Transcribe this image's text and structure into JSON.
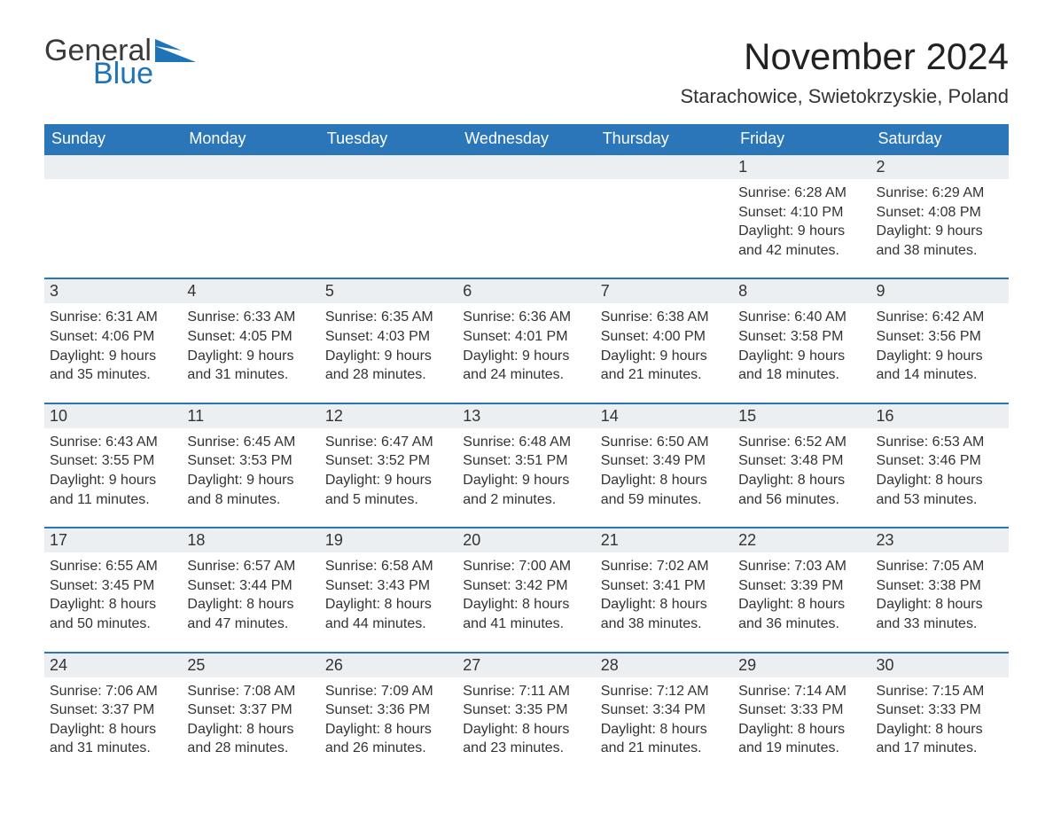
{
  "brand": {
    "general": "General",
    "blue": "Blue"
  },
  "title": "November 2024",
  "location": "Starachowice, Swietokrzyskie, Poland",
  "colors": {
    "header_bg": "#2a76b9",
    "header_text": "#ffffff",
    "week_border": "#2a76b9",
    "daynum_bg": "#eceff1",
    "text": "#333333",
    "page_bg": "#ffffff",
    "logo_general": "#3a3a3a",
    "logo_blue": "#1f74b8"
  },
  "day_names": [
    "Sunday",
    "Monday",
    "Tuesday",
    "Wednesday",
    "Thursday",
    "Friday",
    "Saturday"
  ],
  "weeks": [
    [
      null,
      null,
      null,
      null,
      null,
      {
        "n": "1",
        "sunrise": "Sunrise: 6:28 AM",
        "sunset": "Sunset: 4:10 PM",
        "daylight": "Daylight: 9 hours and 42 minutes."
      },
      {
        "n": "2",
        "sunrise": "Sunrise: 6:29 AM",
        "sunset": "Sunset: 4:08 PM",
        "daylight": "Daylight: 9 hours and 38 minutes."
      }
    ],
    [
      {
        "n": "3",
        "sunrise": "Sunrise: 6:31 AM",
        "sunset": "Sunset: 4:06 PM",
        "daylight": "Daylight: 9 hours and 35 minutes."
      },
      {
        "n": "4",
        "sunrise": "Sunrise: 6:33 AM",
        "sunset": "Sunset: 4:05 PM",
        "daylight": "Daylight: 9 hours and 31 minutes."
      },
      {
        "n": "5",
        "sunrise": "Sunrise: 6:35 AM",
        "sunset": "Sunset: 4:03 PM",
        "daylight": "Daylight: 9 hours and 28 minutes."
      },
      {
        "n": "6",
        "sunrise": "Sunrise: 6:36 AM",
        "sunset": "Sunset: 4:01 PM",
        "daylight": "Daylight: 9 hours and 24 minutes."
      },
      {
        "n": "7",
        "sunrise": "Sunrise: 6:38 AM",
        "sunset": "Sunset: 4:00 PM",
        "daylight": "Daylight: 9 hours and 21 minutes."
      },
      {
        "n": "8",
        "sunrise": "Sunrise: 6:40 AM",
        "sunset": "Sunset: 3:58 PM",
        "daylight": "Daylight: 9 hours and 18 minutes."
      },
      {
        "n": "9",
        "sunrise": "Sunrise: 6:42 AM",
        "sunset": "Sunset: 3:56 PM",
        "daylight": "Daylight: 9 hours and 14 minutes."
      }
    ],
    [
      {
        "n": "10",
        "sunrise": "Sunrise: 6:43 AM",
        "sunset": "Sunset: 3:55 PM",
        "daylight": "Daylight: 9 hours and 11 minutes."
      },
      {
        "n": "11",
        "sunrise": "Sunrise: 6:45 AM",
        "sunset": "Sunset: 3:53 PM",
        "daylight": "Daylight: 9 hours and 8 minutes."
      },
      {
        "n": "12",
        "sunrise": "Sunrise: 6:47 AM",
        "sunset": "Sunset: 3:52 PM",
        "daylight": "Daylight: 9 hours and 5 minutes."
      },
      {
        "n": "13",
        "sunrise": "Sunrise: 6:48 AM",
        "sunset": "Sunset: 3:51 PM",
        "daylight": "Daylight: 9 hours and 2 minutes."
      },
      {
        "n": "14",
        "sunrise": "Sunrise: 6:50 AM",
        "sunset": "Sunset: 3:49 PM",
        "daylight": "Daylight: 8 hours and 59 minutes."
      },
      {
        "n": "15",
        "sunrise": "Sunrise: 6:52 AM",
        "sunset": "Sunset: 3:48 PM",
        "daylight": "Daylight: 8 hours and 56 minutes."
      },
      {
        "n": "16",
        "sunrise": "Sunrise: 6:53 AM",
        "sunset": "Sunset: 3:46 PM",
        "daylight": "Daylight: 8 hours and 53 minutes."
      }
    ],
    [
      {
        "n": "17",
        "sunrise": "Sunrise: 6:55 AM",
        "sunset": "Sunset: 3:45 PM",
        "daylight": "Daylight: 8 hours and 50 minutes."
      },
      {
        "n": "18",
        "sunrise": "Sunrise: 6:57 AM",
        "sunset": "Sunset: 3:44 PM",
        "daylight": "Daylight: 8 hours and 47 minutes."
      },
      {
        "n": "19",
        "sunrise": "Sunrise: 6:58 AM",
        "sunset": "Sunset: 3:43 PM",
        "daylight": "Daylight: 8 hours and 44 minutes."
      },
      {
        "n": "20",
        "sunrise": "Sunrise: 7:00 AM",
        "sunset": "Sunset: 3:42 PM",
        "daylight": "Daylight: 8 hours and 41 minutes."
      },
      {
        "n": "21",
        "sunrise": "Sunrise: 7:02 AM",
        "sunset": "Sunset: 3:41 PM",
        "daylight": "Daylight: 8 hours and 38 minutes."
      },
      {
        "n": "22",
        "sunrise": "Sunrise: 7:03 AM",
        "sunset": "Sunset: 3:39 PM",
        "daylight": "Daylight: 8 hours and 36 minutes."
      },
      {
        "n": "23",
        "sunrise": "Sunrise: 7:05 AM",
        "sunset": "Sunset: 3:38 PM",
        "daylight": "Daylight: 8 hours and 33 minutes."
      }
    ],
    [
      {
        "n": "24",
        "sunrise": "Sunrise: 7:06 AM",
        "sunset": "Sunset: 3:37 PM",
        "daylight": "Daylight: 8 hours and 31 minutes."
      },
      {
        "n": "25",
        "sunrise": "Sunrise: 7:08 AM",
        "sunset": "Sunset: 3:37 PM",
        "daylight": "Daylight: 8 hours and 28 minutes."
      },
      {
        "n": "26",
        "sunrise": "Sunrise: 7:09 AM",
        "sunset": "Sunset: 3:36 PM",
        "daylight": "Daylight: 8 hours and 26 minutes."
      },
      {
        "n": "27",
        "sunrise": "Sunrise: 7:11 AM",
        "sunset": "Sunset: 3:35 PM",
        "daylight": "Daylight: 8 hours and 23 minutes."
      },
      {
        "n": "28",
        "sunrise": "Sunrise: 7:12 AM",
        "sunset": "Sunset: 3:34 PM",
        "daylight": "Daylight: 8 hours and 21 minutes."
      },
      {
        "n": "29",
        "sunrise": "Sunrise: 7:14 AM",
        "sunset": "Sunset: 3:33 PM",
        "daylight": "Daylight: 8 hours and 19 minutes."
      },
      {
        "n": "30",
        "sunrise": "Sunrise: 7:15 AM",
        "sunset": "Sunset: 3:33 PM",
        "daylight": "Daylight: 8 hours and 17 minutes."
      }
    ]
  ]
}
